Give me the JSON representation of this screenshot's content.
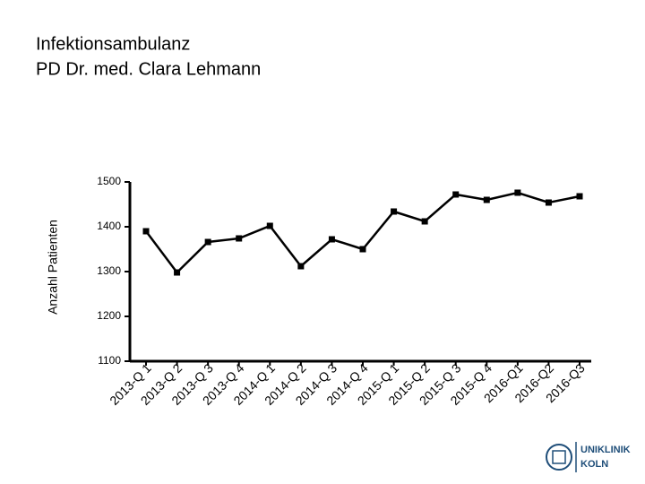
{
  "chart_data": {
    "type": "line",
    "title_lines": [
      "Infektionsambulanz",
      "PD Dr. med. Clara Lehmann"
    ],
    "y_label": "Anzahl Patienten",
    "categories": [
      "2013-Q 1",
      "2013-Q 2",
      "2013-Q 3",
      "2013-Q 4",
      "2014-Q 1",
      "2014-Q 2",
      "2014-Q 3",
      "2014-Q 4",
      "2015-Q 1",
      "2015-Q 2",
      "2015-Q 3",
      "2015-Q 4",
      "2016-Q1",
      "2016-Q2",
      "2016-Q3"
    ],
    "values": [
      1390,
      1298,
      1366,
      1374,
      1402,
      1312,
      1372,
      1350,
      1434,
      1412,
      1472,
      1460,
      1476,
      1454,
      1468
    ],
    "color": "#000000",
    "ylim": [
      1100,
      1500
    ],
    "yticks": [
      1100,
      1200,
      1300,
      1400,
      1500
    ],
    "grid": false
  },
  "logo": {
    "line1": "UNIKLINIK",
    "line2": "KOLN"
  }
}
